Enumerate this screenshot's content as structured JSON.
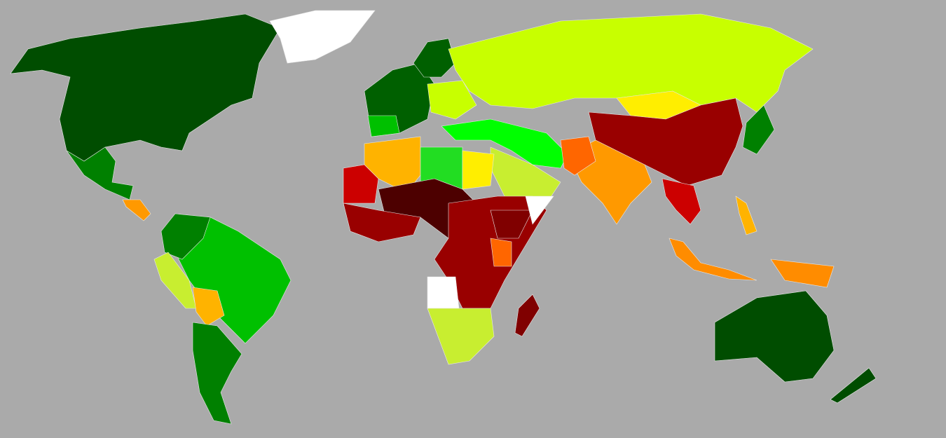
{
  "map": {
    "background": "#aaaaaa",
    "regions": [
      {
        "color": "#004d00"
      },
      {
        "color": "#ffffff"
      },
      {
        "color": "#008000"
      },
      {
        "color": "#ff9900"
      },
      {
        "color": "#00c000"
      },
      {
        "color": "#008000"
      },
      {
        "color": "#c8ee30"
      },
      {
        "color": "#ffb300"
      },
      {
        "color": "#008000"
      },
      {
        "color": "#006000"
      },
      {
        "color": "#006000"
      },
      {
        "color": "#00c000"
      },
      {
        "color": "#c8ff00"
      },
      {
        "color": "#c8ff00"
      },
      {
        "color": "#ffee00"
      },
      {
        "color": "#990000"
      },
      {
        "color": "#00ff00"
      },
      {
        "color": "#c8ee30"
      },
      {
        "color": "#ff9900"
      },
      {
        "color": "#ff6600"
      },
      {
        "color": "#cc0000"
      },
      {
        "color": "#ff8c00"
      },
      {
        "color": "#ff8c00"
      },
      {
        "color": "#008000"
      },
      {
        "color": "#004d00"
      },
      {
        "color": "#004d00"
      },
      {
        "color": "#ffb300"
      },
      {
        "color": "#22dd22"
      },
      {
        "color": "#ffee00"
      },
      {
        "color": "#cc0000"
      },
      {
        "color": "#4d0000"
      },
      {
        "color": "#990000"
      },
      {
        "color": "#990000"
      },
      {
        "color": "#800000"
      },
      {
        "color": "#ffffff"
      },
      {
        "color": "#c8ee30"
      },
      {
        "color": "#800000"
      },
      {
        "color": "#ff6600"
      },
      {
        "color": "#ffffff"
      },
      {
        "color": "#ffb300"
      }
    ]
  }
}
